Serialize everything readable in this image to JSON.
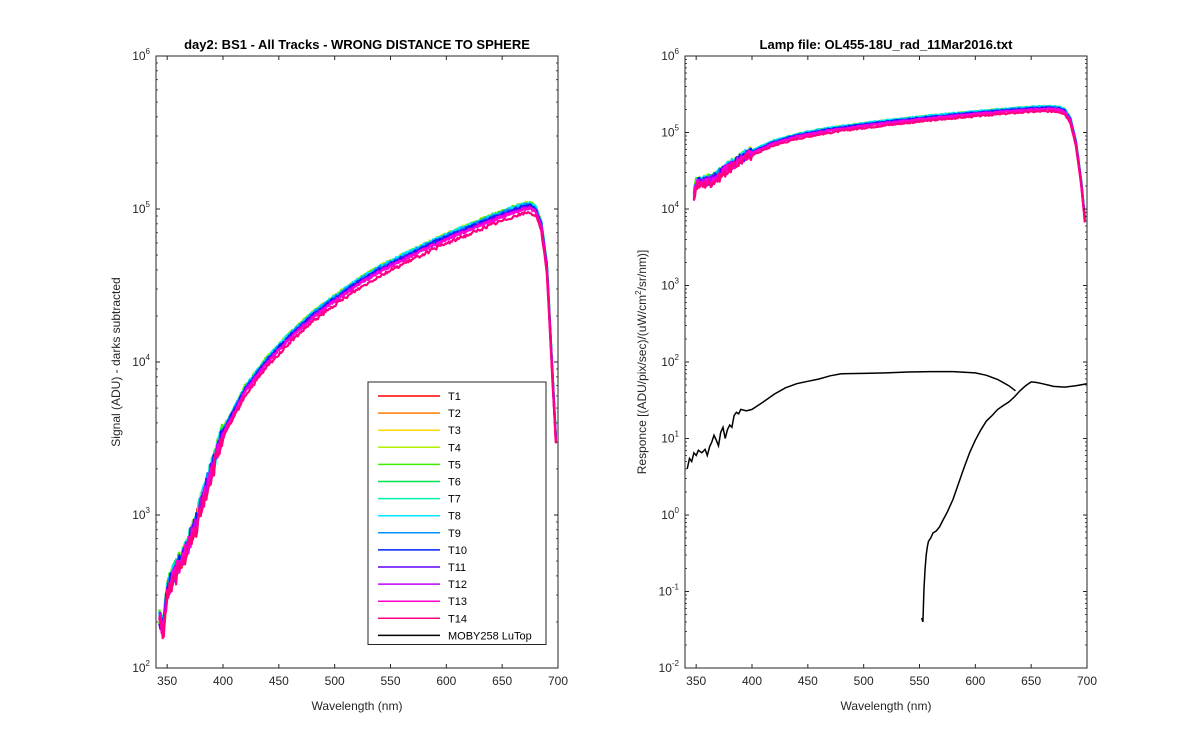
{
  "chart_data": [
    {
      "type": "line",
      "title": "day2: BS1 - All Tracks -  WRONG DISTANCE TO SPHERE",
      "xlabel": "Wavelength (nm)",
      "ylabel": "Signal (ADU) - darks subtracted",
      "xlim": [
        340,
        700
      ],
      "ylim": [
        100,
        1000000
      ],
      "yscale": "log",
      "xticks": [
        "350",
        "400",
        "450",
        "500",
        "550",
        "600",
        "650",
        "700"
      ],
      "yticks": [
        {
          "base": "10",
          "exp": "2"
        },
        {
          "base": "10",
          "exp": "3"
        },
        {
          "base": "10",
          "exp": "4"
        },
        {
          "base": "10",
          "exp": "5"
        },
        {
          "base": "10",
          "exp": "6"
        }
      ],
      "legend_position": "bottom-right",
      "base_curve": {
        "x": [
          343,
          345,
          347,
          350,
          355,
          360,
          365,
          370,
          375,
          380,
          390,
          400,
          420,
          440,
          460,
          480,
          500,
          520,
          540,
          560,
          580,
          600,
          620,
          640,
          660,
          670,
          675,
          680,
          685,
          690,
          695,
          698
        ],
        "y": [
          200,
          190,
          180,
          300,
          380,
          450,
          520,
          650,
          800,
          1100,
          1900,
          3300,
          6300,
          9800,
          14000,
          19000,
          24500,
          31000,
          38000,
          45000,
          53000,
          62000,
          71000,
          82000,
          93000,
          98000,
          99000,
          94000,
          75000,
          40000,
          8000,
          3000
        ]
      },
      "series": [
        {
          "name": "T1",
          "color": "#ff0000",
          "scale": 1.05
        },
        {
          "name": "T2",
          "color": "#ff7a00",
          "scale": 1.07
        },
        {
          "name": "T3",
          "color": "#ffd700",
          "scale": 1.09
        },
        {
          "name": "T4",
          "color": "#b2f000",
          "scale": 1.11
        },
        {
          "name": "T5",
          "color": "#3cf000",
          "scale": 1.1
        },
        {
          "name": "T6",
          "color": "#00e050",
          "scale": 1.08
        },
        {
          "name": "T7",
          "color": "#00f0b0",
          "scale": 1.09
        },
        {
          "name": "T8",
          "color": "#00e6ff",
          "scale": 1.1
        },
        {
          "name": "T9",
          "color": "#0090ff",
          "scale": 1.08
        },
        {
          "name": "T10",
          "color": "#0020ff",
          "scale": 1.06
        },
        {
          "name": "T11",
          "color": "#6000ff",
          "scale": 1.04
        },
        {
          "name": "T12",
          "color": "#c000ff",
          "scale": 1.03
        },
        {
          "name": "T13",
          "color": "#ff00d0",
          "scale": 1.02
        },
        {
          "name": "T14",
          "color": "#ff0080",
          "scale": 0.96
        },
        {
          "name": "MOBY258 LuTop",
          "color": "#000000",
          "scale": 0
        }
      ]
    },
    {
      "type": "line",
      "title": "Lamp file: OL455-18U_rad_11Mar2016.txt",
      "xlabel": "Wavelength (nm)",
      "ylabel": "Responce [(ADU/pix/sec)/(uW/cm²/sr/nm)]",
      "ylabel_parts": [
        "Responce [(ADU/pix/sec)/(uW/cm",
        "2",
        "/sr/nm)]"
      ],
      "xlim": [
        340,
        700
      ],
      "ylim": [
        0.01,
        1000000
      ],
      "yscale": "log",
      "xticks": [
        "350",
        "400",
        "450",
        "500",
        "550",
        "600",
        "650",
        "700"
      ],
      "yticks": [
        {
          "base": "10",
          "exp": "-2"
        },
        {
          "base": "10",
          "exp": "-1"
        },
        {
          "base": "10",
          "exp": "0"
        },
        {
          "base": "10",
          "exp": "1"
        },
        {
          "base": "10",
          "exp": "2"
        },
        {
          "base": "10",
          "exp": "3"
        },
        {
          "base": "10",
          "exp": "4"
        },
        {
          "base": "10",
          "exp": "5"
        },
        {
          "base": "10",
          "exp": "6"
        }
      ],
      "base_curve": {
        "x": [
          348,
          350,
          352,
          355,
          360,
          365,
          370,
          375,
          380,
          390,
          400,
          420,
          440,
          460,
          480,
          500,
          520,
          540,
          560,
          580,
          600,
          620,
          640,
          650,
          660,
          670,
          675,
          680,
          685,
          690,
          695,
          698
        ],
        "y": [
          14000,
          20000,
          21000,
          21000,
          22000,
          23000,
          26000,
          30000,
          34000,
          43000,
          52000,
          70000,
          85000,
          97000,
          108000,
          118000,
          128000,
          138000,
          148000,
          158000,
          168000,
          178000,
          188000,
          192000,
          195000,
          195000,
          192000,
          180000,
          140000,
          70000,
          20000,
          7000
        ]
      },
      "series_colors": [
        "#ff0000",
        "#ff7a00",
        "#ffd700",
        "#b2f000",
        "#3cf000",
        "#00e050",
        "#00f0b0",
        "#00e6ff",
        "#0090ff",
        "#0020ff",
        "#6000ff",
        "#c000ff",
        "#ff00d0",
        "#ff0080"
      ],
      "series_scales": [
        1.06,
        1.08,
        1.1,
        1.12,
        1.11,
        1.09,
        1.1,
        1.12,
        1.09,
        1.07,
        1.05,
        1.04,
        1.03,
        0.97
      ],
      "black_curve_1": {
        "name": "MOBY258 LuTop",
        "color": "#000000",
        "x": [
          342,
          344,
          346,
          348,
          350,
          352,
          355,
          358,
          360,
          362,
          364,
          366,
          368,
          370,
          372,
          374,
          376,
          378,
          380,
          382,
          384,
          386,
          388,
          390,
          395,
          400,
          410,
          420,
          430,
          440,
          450,
          460,
          470,
          480,
          500,
          520,
          540,
          560,
          580,
          600,
          610,
          620,
          630,
          636
        ],
        "y": [
          4,
          5.5,
          5,
          6.5,
          6,
          7,
          6.5,
          7.2,
          6,
          7.8,
          9,
          11,
          9.5,
          8,
          12,
          14,
          10,
          13,
          15,
          14,
          20,
          22,
          21,
          24,
          23,
          24,
          30,
          38,
          46,
          52,
          56,
          60,
          66,
          70,
          71,
          72,
          74,
          75,
          75,
          72,
          67,
          59,
          49,
          42
        ]
      },
      "black_curve_2": {
        "color": "#000000",
        "x": [
          552,
          553,
          554,
          555,
          556,
          557,
          558,
          560,
          562,
          565,
          568,
          570,
          575,
          580,
          585,
          590,
          595,
          600,
          605,
          610,
          615,
          620,
          625,
          630,
          635,
          640,
          645,
          650,
          655,
          660,
          665,
          670,
          680,
          690,
          700
        ],
        "y": [
          0.045,
          0.04,
          0.11,
          0.2,
          0.3,
          0.38,
          0.45,
          0.5,
          0.58,
          0.62,
          0.7,
          0.8,
          1.1,
          1.6,
          2.6,
          4.2,
          6.6,
          9.5,
          13,
          17,
          20,
          24,
          27,
          30,
          35,
          42,
          49,
          55,
          54,
          52,
          50,
          48,
          47,
          49,
          52
        ]
      }
    }
  ]
}
